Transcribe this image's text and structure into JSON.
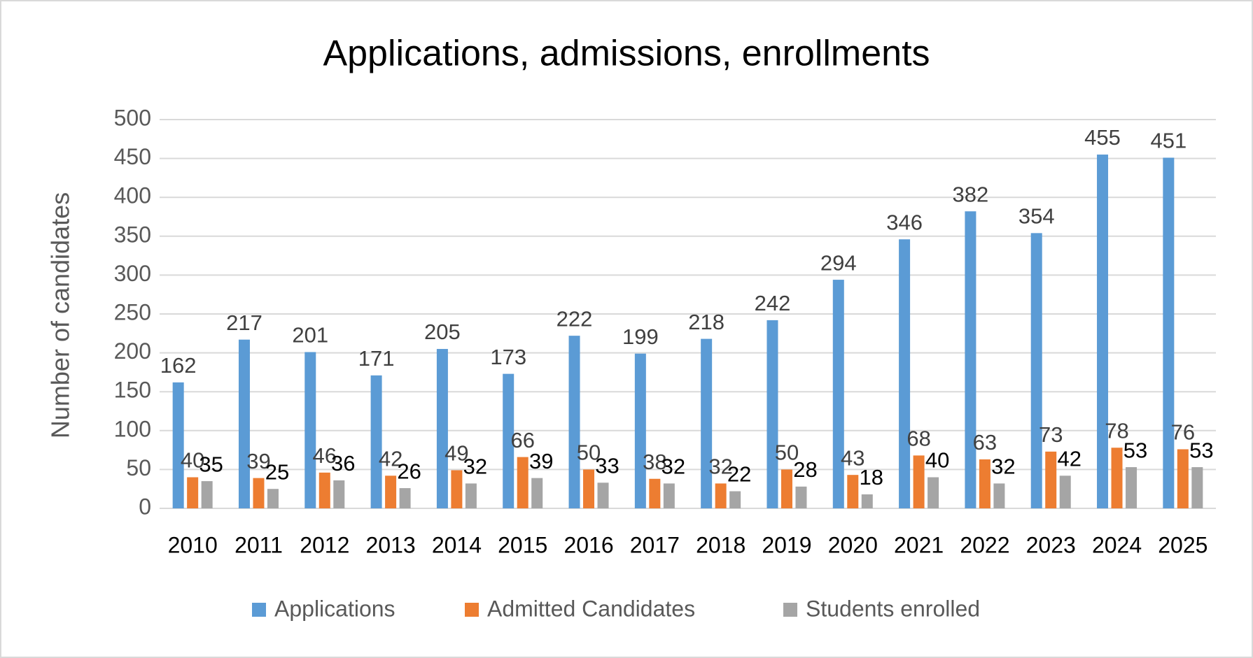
{
  "chart_data": {
    "type": "bar",
    "title": "Applications, admissions, enrollments",
    "y_label": "Number of candidates",
    "categories": [
      "2010",
      "2011",
      "2012",
      "2013",
      "2014",
      "2015",
      "2016",
      "2017",
      "2018",
      "2019",
      "2020",
      "2021",
      "2022",
      "2023",
      "2024",
      "2025"
    ],
    "series": [
      {
        "name": "Applications",
        "color": "#5b9bd5",
        "values": [
          162,
          217,
          201,
          171,
          205,
          173,
          222,
          199,
          218,
          242,
          294,
          346,
          382,
          354,
          455,
          451
        ]
      },
      {
        "name": "Admitted Candidates",
        "color": "#ed7d31",
        "values": [
          40,
          39,
          46,
          42,
          49,
          66,
          50,
          38,
          32,
          50,
          43,
          68,
          63,
          73,
          78,
          76
        ]
      },
      {
        "name": "Students enrolled",
        "color": "#a5a5a5",
        "values": [
          35,
          25,
          36,
          26,
          32,
          39,
          33,
          32,
          22,
          28,
          18,
          40,
          32,
          42,
          53,
          53
        ]
      }
    ],
    "ylim": [
      0,
      500
    ],
    "yticks": [
      0,
      50,
      100,
      150,
      200,
      250,
      300,
      350,
      400,
      450,
      500
    ],
    "grid": true,
    "legend": "bottom"
  }
}
